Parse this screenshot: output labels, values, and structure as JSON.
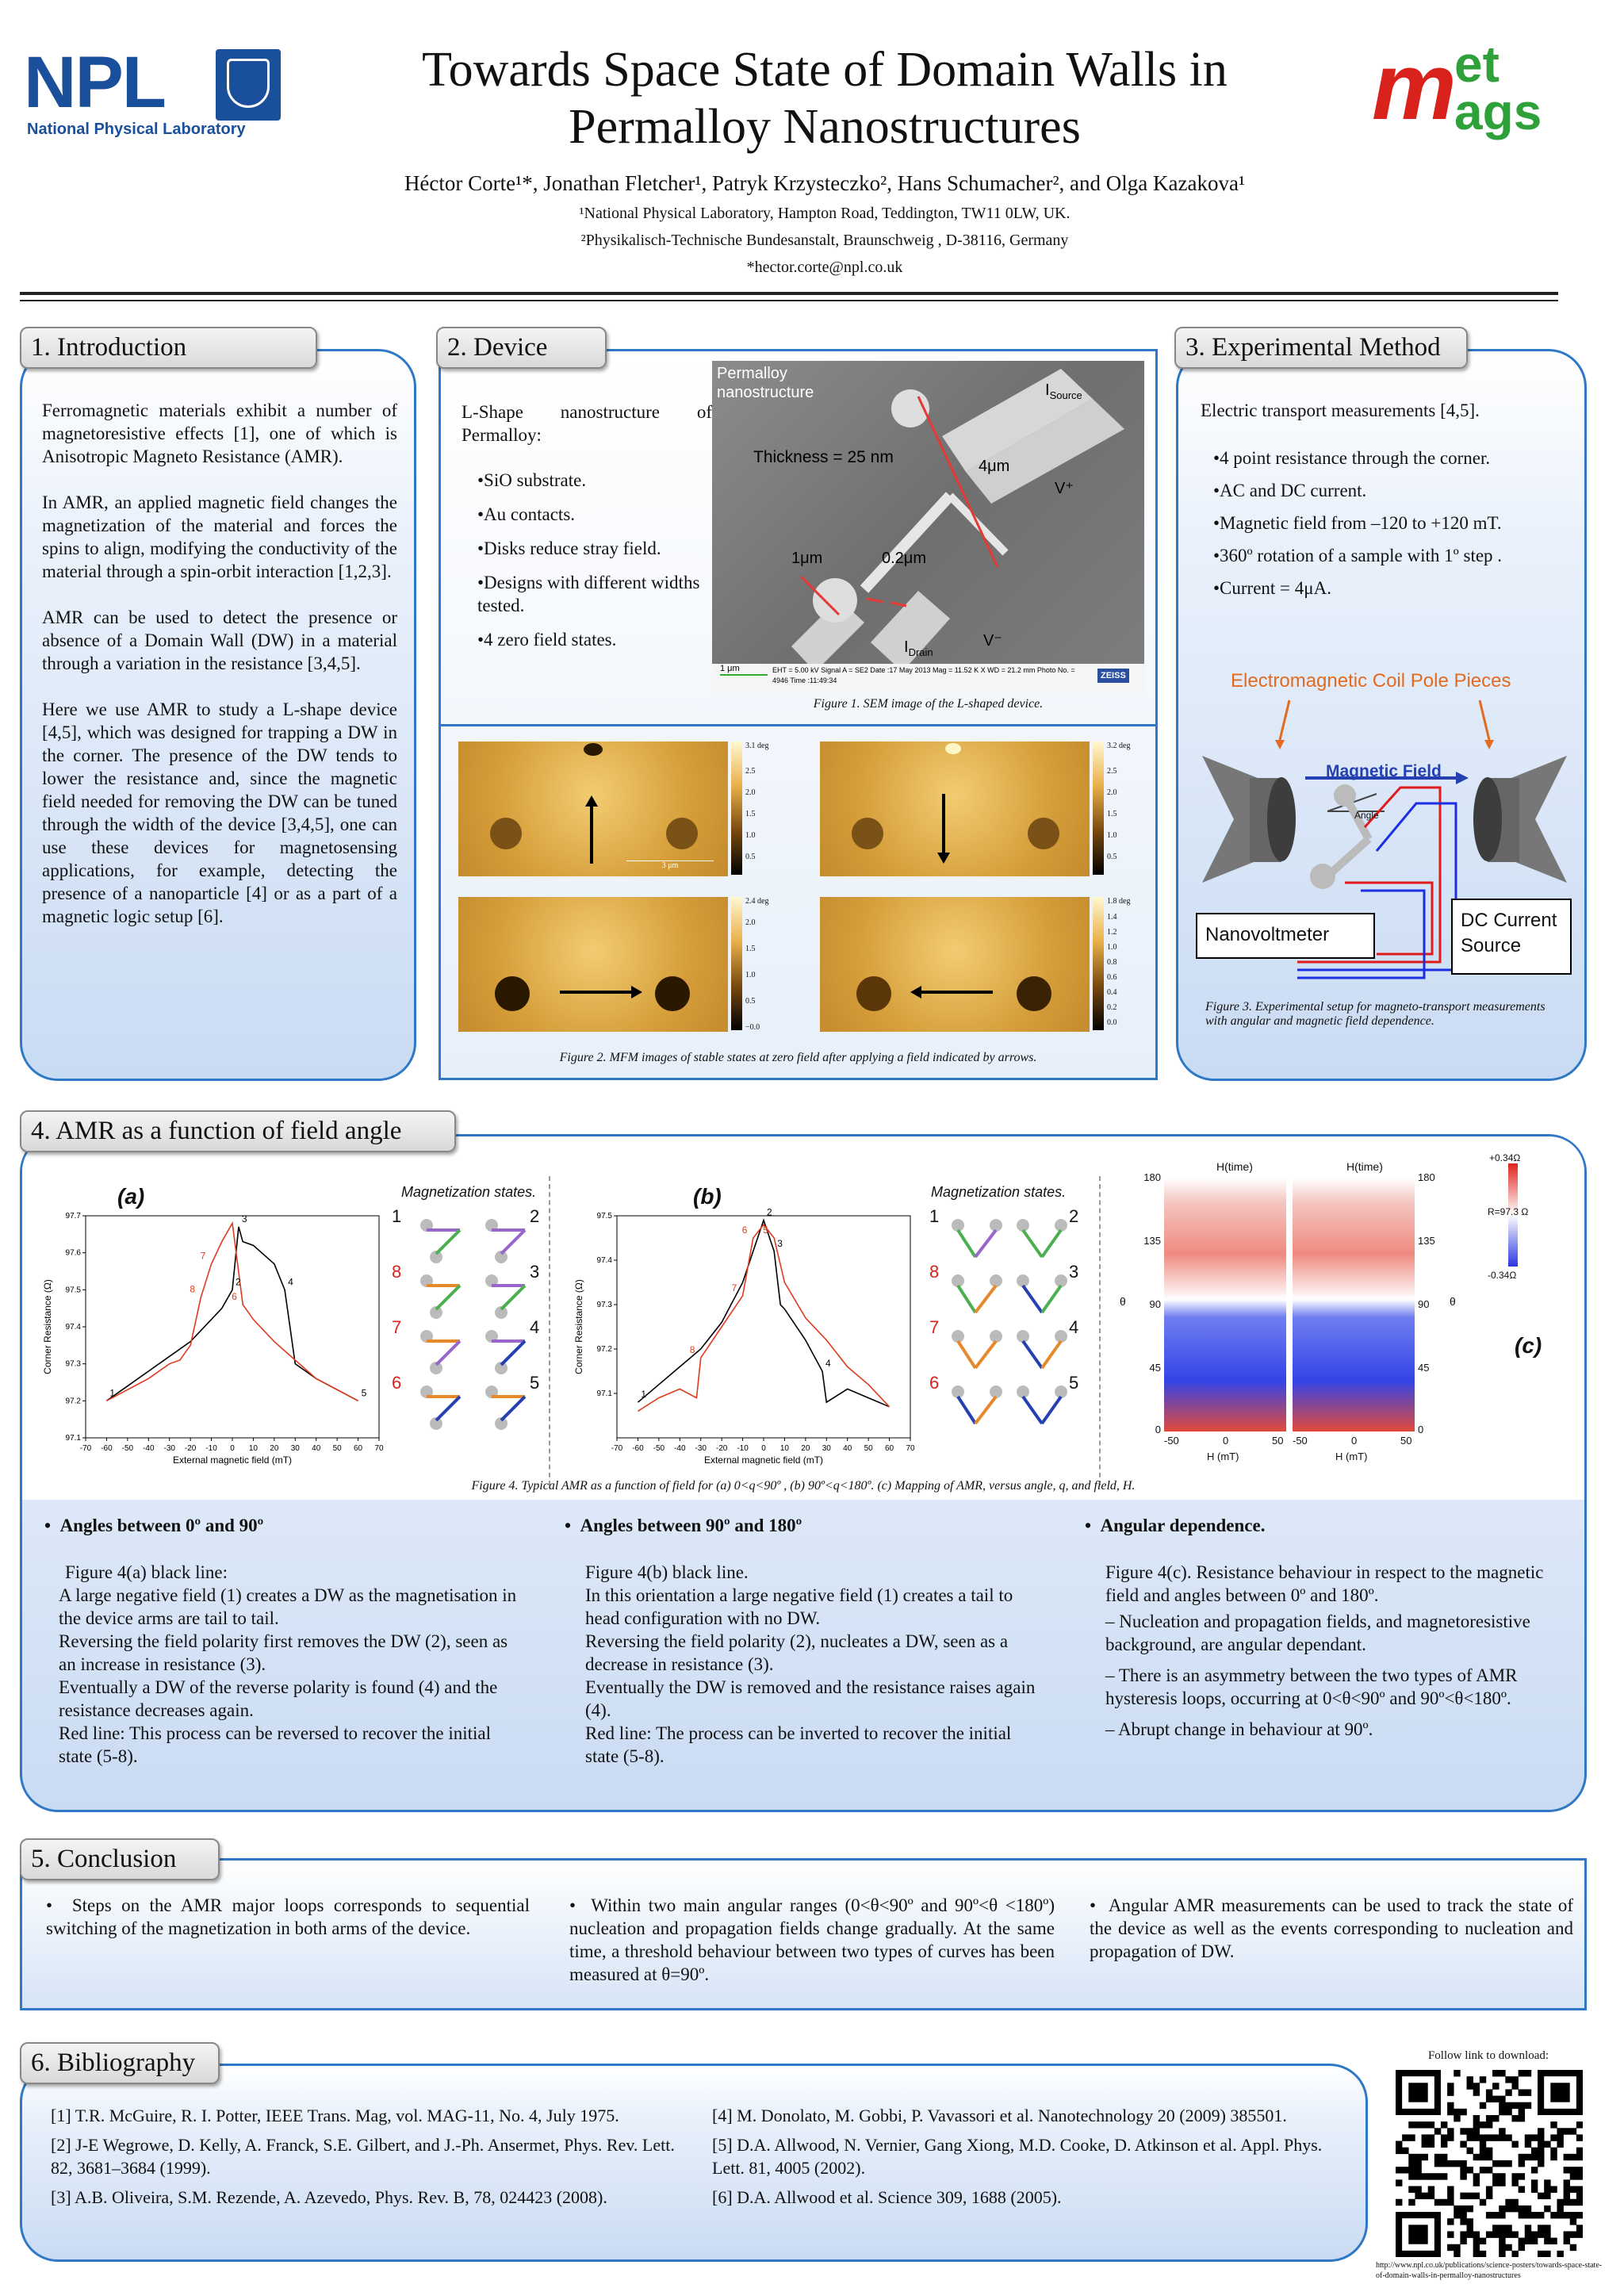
{
  "header": {
    "npl_logo": "NPL",
    "npl_name": "National Physical Laboratory",
    "title_line1": "Towards Space State of Domain Walls in",
    "title_line2": "Permalloy Nanostructures",
    "authors": "Héctor Corte¹*, Jonathan Fletcher¹, Patryk Krzysteczko², Hans Schumacher², and Olga Kazakova¹",
    "affil1": "¹National Physical Laboratory, Hampton Road, Teddington, TW11 0LW, UK.",
    "affil2": "²Physikalisch-Technische Bundesanstalt, Braunschweig , D-38116, Germany",
    "email": "*hector.corte@npl.co.uk",
    "metmags_logo_top": "et",
    "metmags_logo_m": "m",
    "metmags_logo_bottom": "ags"
  },
  "intro": {
    "tab": "1. Introduction",
    "p1": "Ferromagnetic materials exhibit a number of magnetoresistive effects [1], one of which is Anisotropic Magneto Resistance (AMR).",
    "p2": "In AMR, an applied magnetic field changes the magnetization of the material and forces the spins to align, modifying the conductivity of the material through a spin-orbit interaction [1,2,3].",
    "p3": "AMR can be used to detect the presence or absence of a Domain Wall (DW) in a material through a variation in the resistance [3,4,5].",
    "p4": "Here we use AMR to study a L-shape device [4,5], which was designed for trapping a DW in the corner. The presence of the DW tends to lower the resistance and, since the magnetic field needed for removing the DW can be tuned through the width of the device [3,4,5], one can use these devices for magnetosensing applications, for example, detecting the presence of a nanoparticle [4] or as a part of a magnetic logic setup [6]."
  },
  "device": {
    "tab": "2. Device",
    "intro": "L-Shape nanostructure of Permalloy:",
    "bullets": [
      "•SiO substrate.",
      "•Au contacts.",
      "•Disks reduce stray field.",
      "•Designs with different widths tested.",
      "•4 zero field states."
    ],
    "sem_labels": {
      "permalloy": "Permalloy nanostructure",
      "thickness": "Thickness = 25 nm",
      "isource": "I",
      "isource_sub": "Source",
      "vplus": "V⁺",
      "fourum": "4μm",
      "oneum": "1μm",
      "pointtwo": "0.2μm",
      "idrain": "I",
      "idrain_sub": "Drain",
      "vminus": "V⁻",
      "databar": "EHT = 5.00 kV   Signal A = SE2   Date :17 May 2013   Mag = 11.52 K X   WD = 21.2 mm   Photo No. = 4946   Time :11:49:34",
      "scale": "1 μm",
      "zeiss": "ZEISS"
    },
    "fig1_caption": "Figure 1. SEM image of the L-shaped device.",
    "fig2_caption": "Figure 2. MFM images of stable states at zero field after applying a field indicated by arrows.",
    "mfm_scales": [
      {
        "top": "3.1 deg",
        "ticks": [
          "2.5",
          "2.0",
          "1.5",
          "1.0",
          "0.5",
          "0.0"
        ]
      },
      {
        "top": "3.2 deg",
        "ticks": [
          "2.5",
          "2.0",
          "1.5",
          "1.0",
          "0.5",
          "0.0"
        ]
      },
      {
        "top": "2.4 deg",
        "ticks": [
          "2.0",
          "1.5",
          "1.0",
          "0.5",
          "−0.0"
        ]
      },
      {
        "top": "1.8 deg",
        "ticks": [
          "1.4",
          "1.2",
          "1.0",
          "0.8",
          "0.6",
          "0.4",
          "0.2",
          "0.0"
        ]
      }
    ],
    "mfm_scalebar": "3 μm"
  },
  "method": {
    "tab": "3. Experimental Method",
    "intro": "Electric transport measurements [4,5].",
    "bullets": [
      "•4 point resistance through the corner.",
      "•AC and DC current.",
      "•Magnetic field from –120 to +120 mT.",
      "•360º rotation of a sample with 1º step .",
      "•Current = 4μA."
    ],
    "coil_label": "Electromagnetic Coil Pole Pieces",
    "field_label": "Magnetic Field",
    "angle_label": "Angle",
    "nanovoltmeter": "Nanovoltmeter",
    "dc_current": "DC Current Source",
    "fig3_caption": "Figure 3. Experimental setup for magneto-transport measurements with angular and magnetic field dependence."
  },
  "amr": {
    "tab": "4. AMR as a function of field angle",
    "fig4_caption": "Figure 4. Typical AMR as a function of field for (a) 0<q<90º , (b) 90º<q<180º. (c) Mapping of AMR, versus angle, q, and field, H.",
    "mag_states_label": "Magnetization states.",
    "panel_a": "(a)",
    "panel_b": "(b)",
    "panel_c": "(c)",
    "state_nums_black": [
      "1",
      "2",
      "3",
      "4",
      "5"
    ],
    "state_nums_red": [
      "6",
      "7",
      "8"
    ],
    "map_top_label": "H(time)",
    "map_colorbar": [
      "+0.34Ω",
      "R=97.3 Ω",
      "-0.34Ω"
    ],
    "col1_title": "Angles between 0º and 90º",
    "col1_text": [
      "Figure 4(a) black line:",
      "A large negative field (1) creates a DW as the magnetisation in the device arms are tail to tail.",
      "Reversing the field polarity first removes the DW (2), seen as an increase in resistance (3).",
      "Eventually a DW of the reverse polarity is found (4) and the resistance decreases again.",
      "Red line: This process can be reversed to recover the initial state (5-8)."
    ],
    "col2_title": "Angles between 90º and 180º",
    "col2_text": [
      "Figure 4(b) black line.",
      "In this orientation a large negative field (1) creates a tail to head configuration with no DW.",
      "Reversing the field polarity (2), nucleates a DW, seen as a decrease in resistance (3).",
      "Eventually the DW is removed and the resistance raises again (4).",
      "Red line: The process can be inverted to recover the initial state (5-8)."
    ],
    "col3_title": "Angular dependence.",
    "col3_text": [
      "Figure 4(c). Resistance behaviour in respect to the magnetic field and angles between 0º and 180º.",
      "– Nucleation and propagation fields, and magnetoresistive background, are angular dependant.",
      "– There is an asymmetry between the two types of AMR hysteresis loops, occurring at 0<θ<90º and 90º<θ<180º.",
      "– Abrupt change in behaviour at 90º."
    ]
  },
  "conclusion": {
    "tab": "5. Conclusion",
    "c1": "Steps on the AMR major loops corresponds to sequential switching of the magnetization in both arms of the device.",
    "c2": "Within two main angular ranges (0<θ<90º and 90º<θ <180º) nucleation and propagation fields change gradually. At the same time, a threshold behaviour between two types of curves has been measured at θ=90º.",
    "c3": "Angular AMR measurements can be used to track the state of the device as well as the events corresponding to nucleation and propagation of DW."
  },
  "bibliography": {
    "tab": "6. Bibliography",
    "refs_left": [
      "[1] T.R. McGuire, R. I. Potter, IEEE Trans. Mag, vol. MAG-11, No. 4, July 1975.",
      "[2] J-E Wegrowe, D. Kelly, A. Franck, S.E. Gilbert, and J.-Ph. Ansermet, Phys. Rev. Lett. 82, 3681–3684 (1999).",
      "[3] A.B. Oliveira, S.M. Rezende, A. Azevedo, Phys. Rev. B, 78, 024423 (2008)."
    ],
    "refs_right": [
      "[4] M. Donolato, M. Gobbi, P. Vavassori et al. Nanotechnology 20 (2009) 385501.",
      "[5] D.A. Allwood, N. Vernier, Gang Xiong, M.D. Cooke, D. Atkinson et al. Appl. Phys. Lett. 81, 4005 (2002).",
      "[6] D.A. Allwood et al. Science 309, 1688 (2005)."
    ],
    "follow": "Follow link to download:",
    "url": "http://www.npl.co.uk/publications/science-posters/towards-space-state-of-domain-walls-in-permalloy-nanostructures"
  },
  "chart_data": [
    {
      "type": "line",
      "panel": "(a)",
      "xlabel": "External magnetic field (mT)",
      "ylabel": "Corner Resistance (Ω)",
      "xlim": [
        -70,
        70
      ],
      "ylim": [
        97.1,
        97.7
      ],
      "xticks": [
        -70,
        -60,
        -50,
        -40,
        -30,
        -20,
        -10,
        0,
        10,
        20,
        30,
        40,
        50,
        60,
        70
      ],
      "yticks": [
        97.1,
        97.2,
        97.3,
        97.4,
        97.5,
        97.6,
        97.7
      ],
      "series": [
        {
          "color": "#000000",
          "x": [
            -60,
            -50,
            -40,
            -30,
            -20,
            -10,
            -5,
            0,
            3,
            5,
            10,
            20,
            25,
            30,
            40,
            50,
            60
          ],
          "y": [
            97.2,
            97.24,
            97.28,
            97.32,
            97.36,
            97.42,
            97.45,
            97.5,
            97.67,
            97.63,
            97.62,
            97.57,
            97.5,
            97.3,
            97.26,
            97.23,
            97.2
          ]
        },
        {
          "color": "#e03a1e",
          "x": [
            -60,
            -50,
            -40,
            -30,
            -25,
            -20,
            -15,
            -10,
            -5,
            0,
            5,
            10,
            20,
            30,
            40,
            50,
            60
          ],
          "y": [
            97.2,
            97.23,
            97.26,
            97.3,
            97.31,
            97.35,
            97.48,
            97.57,
            97.63,
            97.68,
            97.46,
            97.42,
            97.36,
            97.31,
            97.26,
            97.23,
            97.2
          ]
        }
      ],
      "point_labels_black": [
        "1",
        "2",
        "3",
        "4",
        "5"
      ],
      "point_labels_red": [
        "6",
        "7",
        "8"
      ]
    },
    {
      "type": "line",
      "panel": "(b)",
      "xlabel": "External magnetic field (mT)",
      "ylabel": "Corner Resistance (Ω)",
      "xlim": [
        -70,
        70
      ],
      "ylim": [
        97.0,
        97.5
      ],
      "xticks": [
        -70,
        -60,
        -50,
        -40,
        -30,
        -20,
        -10,
        0,
        10,
        20,
        30,
        40,
        50,
        60,
        70
      ],
      "yticks": [
        97.1,
        97.2,
        97.3,
        97.4,
        97.5
      ],
      "series": [
        {
          "color": "#000000",
          "x": [
            -60,
            -50,
            -40,
            -30,
            -20,
            -10,
            -5,
            0,
            5,
            8,
            10,
            20,
            28,
            30,
            40,
            50,
            60
          ],
          "y": [
            97.08,
            97.12,
            97.16,
            97.2,
            97.26,
            97.35,
            97.42,
            97.49,
            97.42,
            97.3,
            97.29,
            97.22,
            97.15,
            97.08,
            97.11,
            97.09,
            97.07
          ]
        },
        {
          "color": "#e03a1e",
          "x": [
            -60,
            -50,
            -40,
            -32,
            -30,
            -20,
            -10,
            -5,
            0,
            5,
            10,
            20,
            30,
            40,
            50,
            60
          ],
          "y": [
            97.06,
            97.09,
            97.11,
            97.09,
            97.18,
            97.25,
            97.32,
            97.45,
            97.48,
            97.45,
            97.35,
            97.27,
            97.22,
            97.16,
            97.12,
            97.07
          ]
        }
      ],
      "point_labels_black": [
        "1",
        "2",
        "3",
        "4"
      ],
      "point_labels_red": [
        "5",
        "6",
        "7",
        "8"
      ]
    },
    {
      "type": "heatmap",
      "panel": "(c)",
      "ylabel": "θ",
      "xlabel": "H (mT)",
      "xlim": [
        -50,
        50
      ],
      "ylim": [
        0,
        180
      ],
      "xticks": [
        -50,
        0,
        50
      ],
      "yticks": [
        0,
        45,
        90,
        135,
        180
      ],
      "colorbar": [
        "+0.34Ω",
        "R=97.3 Ω",
        "-0.34Ω"
      ]
    }
  ]
}
